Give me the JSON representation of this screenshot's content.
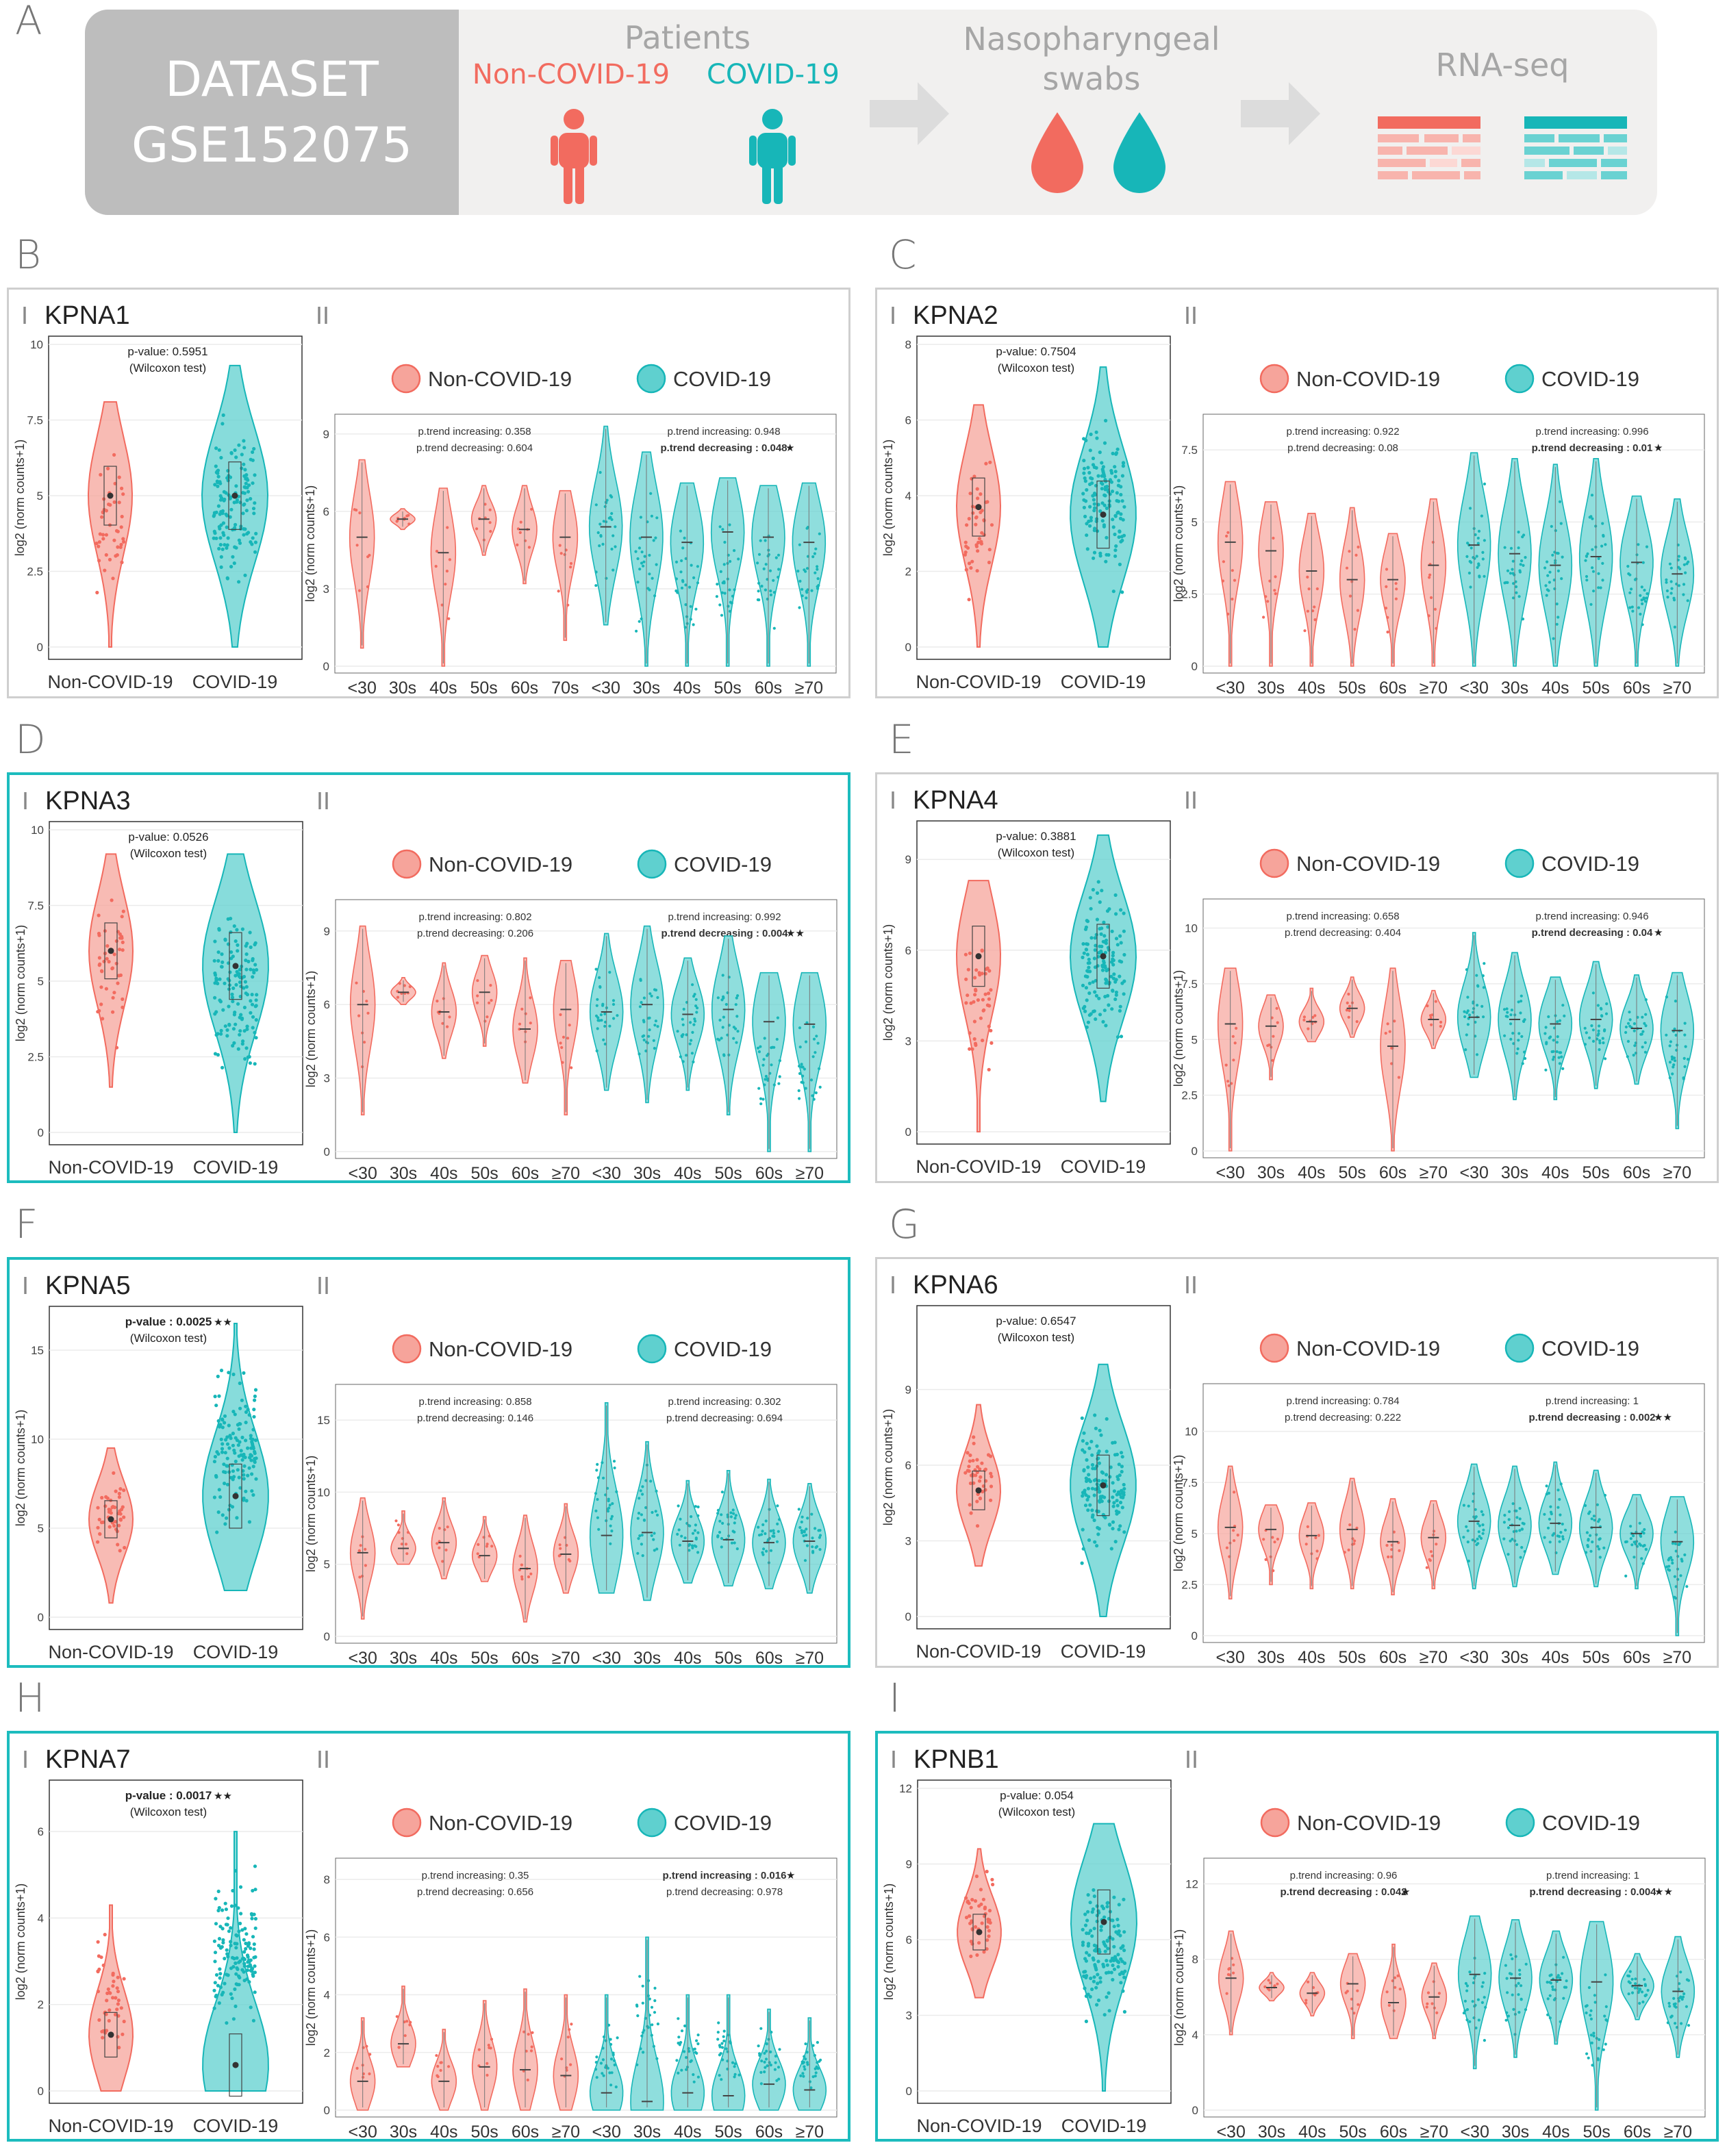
{
  "header": {
    "panel_letter": "A",
    "dataset_line1": "DATASET",
    "dataset_line2": "GSE152075",
    "patients_label": "Patients",
    "non_covid_label": "Non-COVID-19",
    "covid_label": "COVID-19",
    "swabs_line1": "Nasopharyngeal",
    "swabs_line2": "swabs",
    "rnaseq_label": "RNA-seq"
  },
  "colors": {
    "non_covid": "#f26b5f",
    "covid": "#17b6b8",
    "non_covid_fill": "#f6a49b",
    "covid_fill": "#5fd0cf"
  },
  "legend": {
    "non_covid": "Non-COVID-19",
    "covid": "COVID-19"
  },
  "roman": {
    "left": "I",
    "right": "II"
  },
  "ylabel": "log2 (norm counts+1)",
  "groups": [
    "Non-COVID-19",
    "COVID-19"
  ],
  "wilcoxon_label": "(Wilcoxon test)",
  "chart_data": [
    {
      "letter": "B",
      "gene": "KPNA1",
      "type": "violin",
      "highlight": false,
      "pvalue": "p-value: 0.5951",
      "pvalue_bold": false,
      "left_ylim": [
        0,
        10
      ],
      "left_yticks": [
        "0",
        "2.5",
        "5",
        "7.5",
        "10"
      ],
      "left_ytick_vals": [
        0,
        2.5,
        5,
        7.5,
        10
      ],
      "left_values": {
        "non_covid": {
          "min": 0,
          "max": 8.1,
          "median": 5.0
        },
        "covid": {
          "min": 0,
          "max": 9.3,
          "median": 5.0
        }
      },
      "right_ylim": [
        0,
        9.5
      ],
      "right_yticks": [
        "0",
        "3",
        "6",
        "9"
      ],
      "right_ytick_vals": [
        0,
        3,
        6,
        9
      ],
      "age_categories": [
        "<30",
        "30s",
        "40s",
        "50s",
        "60s",
        "70s",
        "<30",
        "30s",
        "40s",
        "50s",
        "60s",
        "≥70"
      ],
      "age_medians": [
        5.0,
        5.7,
        4.4,
        5.7,
        5.3,
        5.0,
        5.4,
        5.0,
        4.8,
        5.2,
        5.0,
        4.8
      ],
      "age_min": [
        0.7,
        5.3,
        0,
        4.3,
        3.2,
        1.0,
        1.6,
        0,
        0,
        0,
        0,
        0
      ],
      "age_max": [
        8.0,
        6.1,
        6.9,
        7.0,
        7.0,
        6.8,
        9.3,
        8.3,
        7.1,
        7.3,
        7.0,
        7.1
      ],
      "trend_left": [
        "p.trend increasing: 0.358",
        "p.trend decreasing: 0.604"
      ],
      "trend_left_bold": [
        false,
        false
      ],
      "trend_right": [
        "p.trend increasing: 0.948",
        "p.trend decreasing : 0.048"
      ],
      "trend_right_bold": [
        false,
        true
      ],
      "trend_left_star": "",
      "trend_right_star": "★"
    },
    {
      "letter": "C",
      "gene": "KPNA2",
      "type": "violin",
      "highlight": false,
      "pvalue": "p-value: 0.7504",
      "pvalue_bold": false,
      "left_ylim": [
        0,
        8
      ],
      "left_yticks": [
        "0",
        "2",
        "4",
        "6",
        "8"
      ],
      "left_ytick_vals": [
        0,
        2,
        4,
        6,
        8
      ],
      "left_values": {
        "non_covid": {
          "min": 0,
          "max": 6.4,
          "median": 3.7
        },
        "covid": {
          "min": 0,
          "max": 7.4,
          "median": 3.5
        }
      },
      "right_ylim": [
        0,
        8.5
      ],
      "right_yticks": [
        "0",
        "2.5",
        "5",
        "7.5"
      ],
      "right_ytick_vals": [
        0,
        2.5,
        5,
        7.5
      ],
      "age_categories": [
        "<30",
        "30s",
        "40s",
        "50s",
        "60s",
        "≥70",
        "<30",
        "30s",
        "40s",
        "50s",
        "60s",
        "≥70"
      ],
      "age_medians": [
        4.3,
        4.0,
        3.3,
        3.0,
        3.0,
        3.5,
        4.2,
        3.9,
        3.5,
        3.8,
        3.6,
        3.2
      ],
      "age_min": [
        0,
        0,
        0,
        0,
        0,
        0,
        0,
        0,
        0,
        0,
        0,
        0
      ],
      "age_max": [
        6.4,
        5.7,
        5.3,
        5.5,
        4.6,
        5.8,
        7.4,
        7.2,
        7.0,
        7.2,
        5.9,
        5.8
      ],
      "trend_left": [
        "p.trend increasing: 0.922",
        "p.trend decreasing: 0.08"
      ],
      "trend_left_bold": [
        false,
        false
      ],
      "trend_right": [
        "p.trend increasing: 0.996",
        "p.trend decreasing : 0.01"
      ],
      "trend_right_bold": [
        false,
        true
      ],
      "trend_left_star": "",
      "trend_right_star": "★"
    },
    {
      "letter": "D",
      "gene": "KPNA3",
      "type": "violin",
      "highlight": true,
      "pvalue": "p-value: 0.0526",
      "pvalue_bold": false,
      "left_ylim": [
        0,
        10
      ],
      "left_yticks": [
        "0",
        "2.5",
        "5",
        "7.5",
        "10"
      ],
      "left_ytick_vals": [
        0,
        2.5,
        5,
        7.5,
        10
      ],
      "left_values": {
        "non_covid": {
          "min": 1.5,
          "max": 9.2,
          "median": 6.0
        },
        "covid": {
          "min": 0,
          "max": 9.2,
          "median": 5.5
        }
      },
      "right_ylim": [
        0,
        10
      ],
      "right_yticks": [
        "0",
        "3",
        "6",
        "9"
      ],
      "right_ytick_vals": [
        0,
        3,
        6,
        9
      ],
      "age_categories": [
        "<30",
        "30s",
        "40s",
        "50s",
        "60s",
        "≥70",
        "<30",
        "30s",
        "40s",
        "50s",
        "60s",
        "≥70"
      ],
      "age_medians": [
        6.0,
        6.5,
        5.7,
        6.5,
        5.0,
        5.8,
        5.7,
        6.0,
        5.6,
        5.8,
        5.3,
        5.2
      ],
      "age_min": [
        1.5,
        6.0,
        3.8,
        4.3,
        2.8,
        1.5,
        2.5,
        2.0,
        2.5,
        1.5,
        0,
        0
      ],
      "age_max": [
        9.2,
        7.1,
        7.7,
        8.0,
        7.9,
        7.8,
        8.9,
        9.2,
        7.9,
        8.8,
        7.3,
        7.3
      ],
      "trend_left": [
        "p.trend increasing: 0.802",
        "p.trend decreasing: 0.206"
      ],
      "trend_left_bold": [
        false,
        false
      ],
      "trend_right": [
        "p.trend increasing: 0.992",
        "p.trend decreasing : 0.004"
      ],
      "trend_right_bold": [
        false,
        true
      ],
      "trend_left_star": "",
      "trend_right_star": "★★"
    },
    {
      "letter": "E",
      "gene": "KPNA4",
      "type": "violin",
      "highlight": false,
      "pvalue": "p-value: 0.3881",
      "pvalue_bold": false,
      "left_ylim": [
        0,
        10
      ],
      "left_yticks": [
        "0",
        "3",
        "6",
        "9"
      ],
      "left_ytick_vals": [
        0,
        3,
        6,
        9
      ],
      "left_values": {
        "non_covid": {
          "min": 0,
          "max": 8.3,
          "median": 5.8
        },
        "covid": {
          "min": 1.0,
          "max": 9.8,
          "median": 5.8
        }
      },
      "right_ylim": [
        0,
        11
      ],
      "right_yticks": [
        "0",
        "2.5",
        "5",
        "7.5",
        "10"
      ],
      "right_ytick_vals": [
        0,
        2.5,
        5,
        7.5,
        10
      ],
      "age_categories": [
        "<30",
        "30s",
        "40s",
        "50s",
        "60s",
        "≥70",
        "<30",
        "30s",
        "40s",
        "50s",
        "60s",
        "≥70"
      ],
      "age_medians": [
        5.7,
        5.6,
        5.8,
        6.4,
        4.7,
        5.9,
        6.0,
        5.9,
        5.7,
        5.9,
        5.5,
        5.4
      ],
      "age_min": [
        0,
        3.2,
        4.9,
        5.1,
        0,
        4.6,
        3.3,
        2.3,
        2.3,
        2.8,
        3.0,
        1.0
      ],
      "age_max": [
        8.2,
        7.0,
        7.3,
        7.8,
        8.2,
        7.2,
        9.8,
        8.9,
        7.8,
        8.5,
        7.9,
        8.0
      ],
      "trend_left": [
        "p.trend increasing: 0.658",
        "p.trend decreasing: 0.404"
      ],
      "trend_left_bold": [
        false,
        false
      ],
      "trend_right": [
        "p.trend increasing: 0.946",
        "p.trend decreasing : 0.04"
      ],
      "trend_right_bold": [
        false,
        true
      ],
      "trend_left_star": "",
      "trend_right_star": "★"
    },
    {
      "letter": "F",
      "gene": "KPNA5",
      "type": "violin",
      "highlight": true,
      "pvalue": "p-value : 0.0025",
      "pvalue_bold": true,
      "left_ylim": [
        0,
        17
      ],
      "left_yticks": [
        "0",
        "5",
        "10",
        "15"
      ],
      "left_ytick_vals": [
        0,
        5,
        10,
        15
      ],
      "left_values": {
        "non_covid": {
          "min": 0.8,
          "max": 9.5,
          "median": 5.5
        },
        "covid": {
          "min": 1.5,
          "max": 16.5,
          "median": 6.8
        }
      },
      "right_ylim": [
        0,
        17
      ],
      "right_yticks": [
        "0",
        "5",
        "10",
        "15"
      ],
      "right_ytick_vals": [
        0,
        5,
        10,
        15
      ],
      "age_categories": [
        "<30",
        "30s",
        "40s",
        "50s",
        "60s",
        "≥70",
        "<30",
        "30s",
        "40s",
        "50s",
        "60s",
        "≥70"
      ],
      "age_medians": [
        5.8,
        6.1,
        6.5,
        5.6,
        4.7,
        5.7,
        7.0,
        7.2,
        6.6,
        6.7,
        6.5,
        6.6
      ],
      "age_min": [
        1.2,
        5.0,
        4.0,
        3.8,
        1.0,
        3.0,
        3.0,
        2.5,
        3.7,
        3.5,
        3.3,
        3.0
      ],
      "age_max": [
        9.6,
        8.7,
        9.6,
        8.3,
        8.4,
        9.2,
        16.2,
        13.5,
        10.8,
        11.5,
        10.9,
        10.6
      ],
      "trend_left": [
        "p.trend increasing: 0.858",
        "p.trend decreasing: 0.146"
      ],
      "trend_left_bold": [
        false,
        false
      ],
      "trend_right": [
        "p.trend increasing: 0.302",
        "p.trend decreasing: 0.694"
      ],
      "trend_right_bold": [
        false,
        false
      ],
      "trend_left_star": "",
      "trend_right_star": ""
    },
    {
      "letter": "G",
      "gene": "KPNA6",
      "type": "violin",
      "highlight": false,
      "pvalue": "p-value: 0.6547",
      "pvalue_bold": false,
      "left_ylim": [
        0,
        12
      ],
      "left_yticks": [
        "0",
        "3",
        "6",
        "9"
      ],
      "left_ytick_vals": [
        0,
        3,
        6,
        9
      ],
      "left_values": {
        "non_covid": {
          "min": 2.0,
          "max": 8.4,
          "median": 5.0
        },
        "covid": {
          "min": 0,
          "max": 10.0,
          "median": 5.2
        }
      },
      "right_ylim": [
        0,
        12
      ],
      "right_yticks": [
        "0",
        "2.5",
        "5",
        "7.5",
        "10"
      ],
      "right_ytick_vals": [
        0,
        2.5,
        5,
        7.5,
        10
      ],
      "age_categories": [
        "<30",
        "30s",
        "40s",
        "50s",
        "60s",
        "≥70",
        "<30",
        "30s",
        "40s",
        "50s",
        "60s",
        "≥70"
      ],
      "age_medians": [
        5.3,
        5.2,
        4.9,
        5.2,
        4.6,
        4.8,
        5.6,
        5.4,
        5.5,
        5.3,
        5.0,
        4.6
      ],
      "age_min": [
        1.8,
        2.5,
        2.3,
        2.3,
        2.0,
        2.3,
        2.3,
        2.4,
        3.0,
        2.4,
        2.3,
        0
      ],
      "age_max": [
        8.3,
        6.4,
        6.5,
        7.7,
        6.7,
        6.6,
        8.4,
        8.3,
        8.5,
        8.1,
        6.9,
        6.8
      ],
      "trend_left": [
        "p.trend increasing: 0.784",
        "p.trend decreasing: 0.222"
      ],
      "trend_left_bold": [
        false,
        false
      ],
      "trend_right": [
        "p.trend increasing: 1",
        "p.trend decreasing : 0.002"
      ],
      "trend_right_bold": [
        false,
        true
      ],
      "trend_left_star": "",
      "trend_right_star": "★★"
    },
    {
      "letter": "H",
      "gene": "KPNA7",
      "type": "violin",
      "highlight": true,
      "pvalue": "p-value : 0.0017",
      "pvalue_bold": true,
      "left_ylim": [
        0,
        7
      ],
      "left_yticks": [
        "0",
        "2",
        "4",
        "6"
      ],
      "left_ytick_vals": [
        0,
        2,
        4,
        6
      ],
      "left_values": {
        "non_covid": {
          "min": 0,
          "max": 4.3,
          "median": 1.3
        },
        "covid": {
          "min": 0,
          "max": 6.0,
          "median": 0.6
        }
      },
      "right_ylim": [
        0,
        8.5
      ],
      "right_yticks": [
        "0",
        "2",
        "4",
        "6",
        "8"
      ],
      "right_ytick_vals": [
        0,
        2,
        4,
        6,
        8
      ],
      "age_categories": [
        "<30",
        "30s",
        "40s",
        "50s",
        "60s",
        "≥70",
        "<30",
        "30s",
        "40s",
        "50s",
        "60s",
        "≥70"
      ],
      "age_medians": [
        1.0,
        2.3,
        1.0,
        1.5,
        1.4,
        1.2,
        0.6,
        0.3,
        0.6,
        0.5,
        0.9,
        0.7
      ],
      "age_min": [
        0,
        1.5,
        0,
        0,
        0,
        0,
        0,
        0,
        0,
        0,
        0,
        0
      ],
      "age_max": [
        3.2,
        4.3,
        2.8,
        3.8,
        4.2,
        4.0,
        4.0,
        6.0,
        4.0,
        4.0,
        3.5,
        3.2
      ],
      "trend_left": [
        "p.trend increasing: 0.35",
        "p.trend decreasing: 0.656"
      ],
      "trend_left_bold": [
        false,
        false
      ],
      "trend_right": [
        "p.trend increasing : 0.016",
        "p.trend decreasing: 0.978"
      ],
      "trend_right_bold": [
        true,
        false
      ],
      "trend_left_star": "",
      "trend_right_star": "★"
    },
    {
      "letter": "I",
      "gene": "KPNB1",
      "type": "violin",
      "highlight": true,
      "pvalue": "p-value: 0.054",
      "pvalue_bold": false,
      "left_ylim": [
        0,
        12
      ],
      "left_yticks": [
        "0",
        "3",
        "6",
        "9",
        "12"
      ],
      "left_ytick_vals": [
        0,
        3,
        6,
        9,
        12
      ],
      "left_values": {
        "non_covid": {
          "min": 3.7,
          "max": 9.6,
          "median": 6.3
        },
        "covid": {
          "min": 0,
          "max": 10.6,
          "median": 6.7
        }
      },
      "right_ylim": [
        0,
        13
      ],
      "right_yticks": [
        "0",
        "4",
        "8",
        "12"
      ],
      "right_ytick_vals": [
        0,
        4,
        8,
        12
      ],
      "age_categories": [
        "<30",
        "30s",
        "40s",
        "50s",
        "60s",
        "≥70",
        "<30",
        "30s",
        "40s",
        "50s",
        "60s",
        "≥70"
      ],
      "age_medians": [
        7.0,
        6.5,
        6.2,
        6.7,
        5.7,
        6.0,
        7.2,
        7.0,
        6.9,
        6.8,
        6.6,
        6.3
      ],
      "age_min": [
        4.0,
        5.8,
        5.0,
        3.8,
        3.8,
        3.8,
        2.2,
        2.8,
        3.5,
        0,
        4.8,
        2.8
      ],
      "age_max": [
        9.5,
        7.3,
        7.3,
        8.3,
        8.8,
        7.8,
        10.3,
        10.1,
        9.5,
        10.0,
        8.3,
        9.2
      ],
      "trend_left": [
        "p.trend increasing: 0.96",
        "p.trend decreasing : 0.042"
      ],
      "trend_left_bold": [
        false,
        true
      ],
      "trend_right": [
        "p.trend increasing: 1",
        "p.trend decreasing : 0.004"
      ],
      "trend_right_bold": [
        false,
        true
      ],
      "trend_left_star": "★",
      "trend_right_star": "★★"
    }
  ]
}
